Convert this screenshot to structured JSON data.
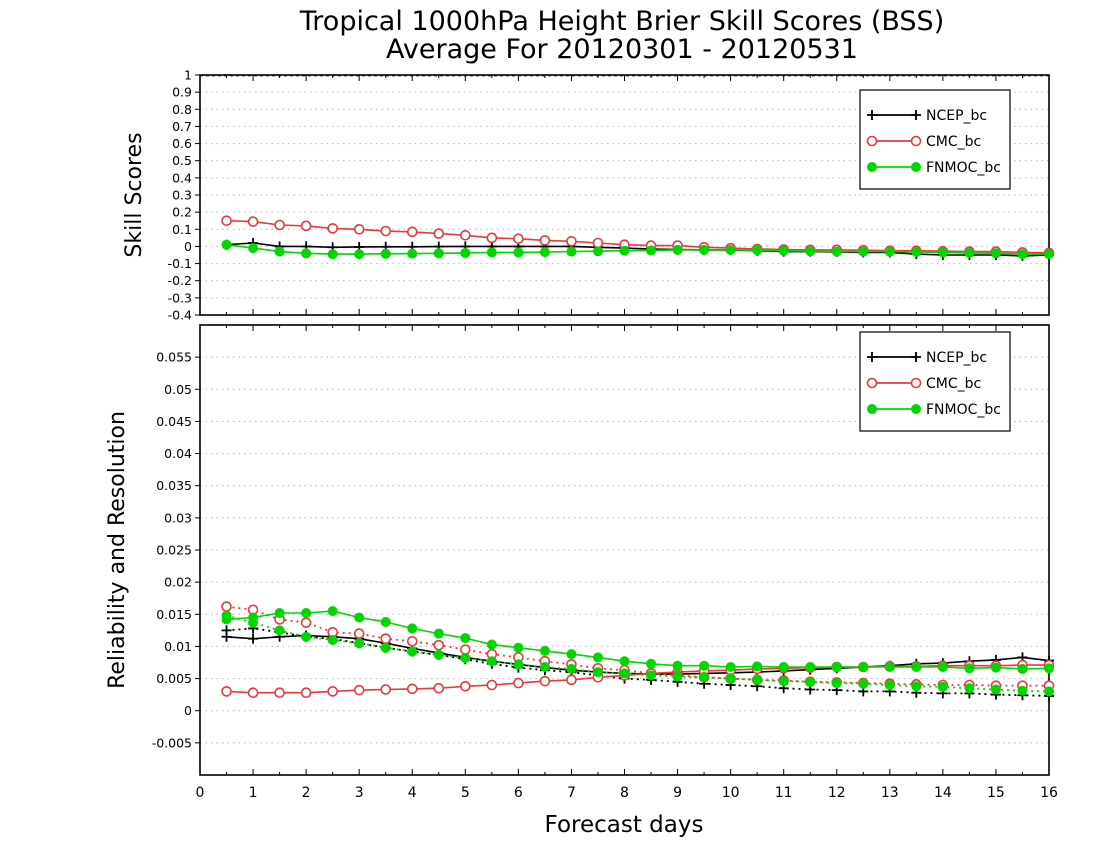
{
  "title_line1": "Tropical 1000hPa Height Brier Skill Scores (BSS)",
  "title_line2": "Average For 20120301 - 20120531",
  "xlabel": "Forecast days",
  "x_ticks": [
    "0",
    "1",
    "2",
    "3",
    "4",
    "5",
    "6",
    "7",
    "8",
    "9",
    "10",
    "11",
    "12",
    "13",
    "14",
    "15",
    "16"
  ],
  "colors": {
    "NCEP_bc": "#000000",
    "CMC_bc": "#e8393b",
    "FNMOC_bc": "#00d700"
  },
  "chart_data": [
    {
      "type": "line",
      "ylabel": "Skill Scores",
      "xlim": [
        0,
        16
      ],
      "ylim": [
        -0.4,
        1
      ],
      "grid": true,
      "legend_position": "top-right",
      "legend": [
        "NCEP_bc",
        "CMC_bc",
        "FNMOC_bc"
      ],
      "x": [
        0.5,
        1,
        1.5,
        2,
        2.5,
        3,
        3.5,
        4,
        4.5,
        5,
        5.5,
        6,
        6.5,
        7,
        7.5,
        8,
        8.5,
        9,
        9.5,
        10,
        10.5,
        11,
        11.5,
        12,
        12.5,
        13,
        13.5,
        14,
        14.5,
        15,
        15.5,
        16
      ],
      "y_ticks": [
        "1",
        "0.9",
        "0.8",
        "0.7",
        "0.6",
        "0.5",
        "0.4",
        "0.3",
        "0.2",
        "0.1",
        "0",
        "-0.1",
        "-0.2",
        "-0.3",
        "-0.4"
      ],
      "series": [
        {
          "name": "NCEP_bc",
          "marker": "plus",
          "line": "solid",
          "values": [
            0.01,
            0.02,
            0.0,
            0.0,
            -0.005,
            -0.003,
            -0.002,
            -0.002,
            -0.001,
            0.0,
            0.0,
            0.0,
            0.0,
            0.0,
            -0.005,
            -0.01,
            -0.015,
            -0.018,
            -0.02,
            -0.02,
            -0.025,
            -0.03,
            -0.03,
            -0.032,
            -0.035,
            -0.035,
            -0.045,
            -0.05,
            -0.05,
            -0.05,
            -0.055,
            -0.05
          ]
        },
        {
          "name": "CMC_bc",
          "marker": "open-circle",
          "line": "solid",
          "values": [
            0.15,
            0.145,
            0.125,
            0.12,
            0.105,
            0.1,
            0.09,
            0.085,
            0.075,
            0.065,
            0.05,
            0.045,
            0.035,
            0.03,
            0.02,
            0.01,
            0.005,
            0.005,
            -0.005,
            -0.01,
            -0.015,
            -0.018,
            -0.02,
            -0.02,
            -0.022,
            -0.025,
            -0.025,
            -0.028,
            -0.03,
            -0.03,
            -0.035,
            -0.038
          ]
        },
        {
          "name": "FNMOC_bc",
          "marker": "filled-circle",
          "line": "solid",
          "values": [
            0.01,
            -0.01,
            -0.03,
            -0.04,
            -0.045,
            -0.045,
            -0.043,
            -0.042,
            -0.04,
            -0.038,
            -0.035,
            -0.035,
            -0.033,
            -0.03,
            -0.028,
            -0.025,
            -0.023,
            -0.02,
            -0.02,
            -0.02,
            -0.022,
            -0.025,
            -0.028,
            -0.03,
            -0.03,
            -0.03,
            -0.032,
            -0.035,
            -0.038,
            -0.04,
            -0.045,
            -0.045
          ]
        }
      ]
    },
    {
      "type": "line",
      "ylabel": "Reliability and Resolution",
      "xlim": [
        0,
        16
      ],
      "ylim": [
        -0.01,
        0.06
      ],
      "grid": true,
      "legend_position": "top-right",
      "legend": [
        "NCEP_bc",
        "CMC_bc",
        "FNMOC_bc"
      ],
      "x": [
        0.5,
        1,
        1.5,
        2,
        2.5,
        3,
        3.5,
        4,
        4.5,
        5,
        5.5,
        6,
        6.5,
        7,
        7.5,
        8,
        8.5,
        9,
        9.5,
        10,
        10.5,
        11,
        11.5,
        12,
        12.5,
        13,
        13.5,
        14,
        14.5,
        15,
        15.5,
        16
      ],
      "y_ticks": [
        "0.055",
        "0.05",
        "0.045",
        "0.04",
        "0.035",
        "0.03",
        "0.025",
        "0.02",
        "0.015",
        "0.01",
        "0.005",
        "0",
        "-0.005"
      ],
      "series": [
        {
          "name": "NCEP_bc resolution",
          "marker": "plus",
          "line": "solid",
          "values": [
            0.0115,
            0.0112,
            0.0115,
            0.0117,
            0.0115,
            0.0112,
            0.0105,
            0.0097,
            0.009,
            0.0083,
            0.0077,
            0.0072,
            0.0067,
            0.0063,
            0.006,
            0.0058,
            0.0057,
            0.0057,
            0.0058,
            0.0059,
            0.006,
            0.0062,
            0.0064,
            0.0066,
            0.0068,
            0.007,
            0.0073,
            0.0074,
            0.0077,
            0.0079,
            0.0083,
            0.0078
          ]
        },
        {
          "name": "NCEP_bc reliability",
          "marker": "plus",
          "line": "dotted",
          "values": [
            0.0125,
            0.0128,
            0.0122,
            0.0115,
            0.0112,
            0.0105,
            0.0098,
            0.0092,
            0.0087,
            0.008,
            0.0073,
            0.0067,
            0.0063,
            0.006,
            0.0055,
            0.005,
            0.0048,
            0.0045,
            0.0042,
            0.004,
            0.0038,
            0.0035,
            0.0033,
            0.0032,
            0.003,
            0.003,
            0.0028,
            0.0027,
            0.0027,
            0.0025,
            0.0024,
            0.0023
          ]
        },
        {
          "name": "CMC_bc resolution",
          "marker": "open-circle",
          "line": "solid",
          "values": [
            0.003,
            0.0028,
            0.0028,
            0.0028,
            0.003,
            0.0032,
            0.0033,
            0.0034,
            0.0035,
            0.0038,
            0.004,
            0.0043,
            0.0046,
            0.0048,
            0.0052,
            0.0055,
            0.0058,
            0.006,
            0.0062,
            0.0063,
            0.0065,
            0.0066,
            0.0067,
            0.0068,
            0.0068,
            0.0069,
            0.0069,
            0.007,
            0.007,
            0.007,
            0.0071,
            0.0071
          ]
        },
        {
          "name": "CMC_bc reliability",
          "marker": "open-circle",
          "line": "dotted",
          "values": [
            0.0162,
            0.0157,
            0.0142,
            0.0137,
            0.0122,
            0.012,
            0.0112,
            0.0108,
            0.0102,
            0.0095,
            0.0088,
            0.0083,
            0.0077,
            0.0072,
            0.0066,
            0.0063,
            0.0058,
            0.0055,
            0.0052,
            0.005,
            0.0048,
            0.0047,
            0.0045,
            0.0044,
            0.0043,
            0.0042,
            0.0041,
            0.004,
            0.004,
            0.0039,
            0.0039,
            0.0039
          ]
        },
        {
          "name": "FNMOC_bc resolution",
          "marker": "filled-circle",
          "line": "solid",
          "values": [
            0.0142,
            0.0145,
            0.0152,
            0.0152,
            0.0155,
            0.0145,
            0.0138,
            0.0128,
            0.012,
            0.0113,
            0.0103,
            0.0098,
            0.0093,
            0.0088,
            0.0083,
            0.0077,
            0.0073,
            0.007,
            0.007,
            0.0068,
            0.0069,
            0.0068,
            0.0068,
            0.0068,
            0.0068,
            0.0068,
            0.0068,
            0.0068,
            0.0066,
            0.0067,
            0.0065,
            0.0066
          ]
        },
        {
          "name": "FNMOC_bc reliability",
          "marker": "filled-circle",
          "line": "dotted",
          "values": [
            0.0148,
            0.0137,
            0.0125,
            0.0115,
            0.011,
            0.0105,
            0.0098,
            0.0092,
            0.0087,
            0.0082,
            0.0077,
            0.0072,
            0.0068,
            0.0065,
            0.006,
            0.0058,
            0.0055,
            0.0053,
            0.0052,
            0.005,
            0.0048,
            0.0046,
            0.0045,
            0.0043,
            0.0042,
            0.004,
            0.0038,
            0.0037,
            0.0035,
            0.0033,
            0.0031,
            0.003
          ]
        }
      ]
    }
  ]
}
